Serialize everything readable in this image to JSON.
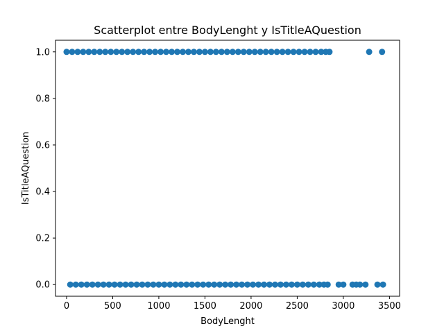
{
  "chart_data": {
    "type": "scatter",
    "title": "Scatterplot entre BodyLenght y IsTitleAQuestion",
    "xlabel": "BodyLenght",
    "ylabel": "IsTitleAQuestion",
    "xlim": [
      -120,
      3610
    ],
    "ylim": [
      -0.05,
      1.05
    ],
    "xticks": [
      0,
      500,
      1000,
      1500,
      2000,
      2500,
      3000,
      3500
    ],
    "xtick_labels": [
      "0",
      "500",
      "1000",
      "1500",
      "2000",
      "2500",
      "3000",
      "3500"
    ],
    "yticks": [
      0.0,
      0.2,
      0.4,
      0.6,
      0.8,
      1.0
    ],
    "ytick_labels": [
      "0.0",
      "0.2",
      "0.4",
      "0.6",
      "0.8",
      "1.0"
    ],
    "grid": false,
    "marker_color": "#1f77b4",
    "series": [
      {
        "name": "",
        "points": [
          [
            0,
            1
          ],
          [
            60,
            1
          ],
          [
            120,
            1
          ],
          [
            180,
            1
          ],
          [
            240,
            1
          ],
          [
            300,
            1
          ],
          [
            360,
            1
          ],
          [
            420,
            1
          ],
          [
            480,
            1
          ],
          [
            540,
            1
          ],
          [
            600,
            1
          ],
          [
            660,
            1
          ],
          [
            720,
            1
          ],
          [
            780,
            1
          ],
          [
            840,
            1
          ],
          [
            900,
            1
          ],
          [
            960,
            1
          ],
          [
            1020,
            1
          ],
          [
            1080,
            1
          ],
          [
            1140,
            1
          ],
          [
            1200,
            1
          ],
          [
            1260,
            1
          ],
          [
            1320,
            1
          ],
          [
            1380,
            1
          ],
          [
            1440,
            1
          ],
          [
            1500,
            1
          ],
          [
            1560,
            1
          ],
          [
            1620,
            1
          ],
          [
            1680,
            1
          ],
          [
            1740,
            1
          ],
          [
            1800,
            1
          ],
          [
            1860,
            1
          ],
          [
            1920,
            1
          ],
          [
            1980,
            1
          ],
          [
            2040,
            1
          ],
          [
            2100,
            1
          ],
          [
            2160,
            1
          ],
          [
            2220,
            1
          ],
          [
            2280,
            1
          ],
          [
            2340,
            1
          ],
          [
            2400,
            1
          ],
          [
            2460,
            1
          ],
          [
            2520,
            1
          ],
          [
            2580,
            1
          ],
          [
            2640,
            1
          ],
          [
            2700,
            1
          ],
          [
            2760,
            1
          ],
          [
            2810,
            1
          ],
          [
            2850,
            1
          ],
          [
            3280,
            1
          ],
          [
            3420,
            1
          ],
          [
            40,
            0
          ],
          [
            100,
            0
          ],
          [
            160,
            0
          ],
          [
            220,
            0
          ],
          [
            280,
            0
          ],
          [
            340,
            0
          ],
          [
            400,
            0
          ],
          [
            460,
            0
          ],
          [
            520,
            0
          ],
          [
            580,
            0
          ],
          [
            640,
            0
          ],
          [
            700,
            0
          ],
          [
            760,
            0
          ],
          [
            820,
            0
          ],
          [
            880,
            0
          ],
          [
            940,
            0
          ],
          [
            1000,
            0
          ],
          [
            1060,
            0
          ],
          [
            1120,
            0
          ],
          [
            1180,
            0
          ],
          [
            1240,
            0
          ],
          [
            1300,
            0
          ],
          [
            1360,
            0
          ],
          [
            1420,
            0
          ],
          [
            1480,
            0
          ],
          [
            1540,
            0
          ],
          [
            1600,
            0
          ],
          [
            1660,
            0
          ],
          [
            1720,
            0
          ],
          [
            1780,
            0
          ],
          [
            1840,
            0
          ],
          [
            1900,
            0
          ],
          [
            1960,
            0
          ],
          [
            2020,
            0
          ],
          [
            2080,
            0
          ],
          [
            2140,
            0
          ],
          [
            2200,
            0
          ],
          [
            2260,
            0
          ],
          [
            2320,
            0
          ],
          [
            2380,
            0
          ],
          [
            2440,
            0
          ],
          [
            2500,
            0
          ],
          [
            2560,
            0
          ],
          [
            2620,
            0
          ],
          [
            2680,
            0
          ],
          [
            2740,
            0
          ],
          [
            2790,
            0
          ],
          [
            2830,
            0
          ],
          [
            2950,
            0
          ],
          [
            3000,
            0
          ],
          [
            3100,
            0
          ],
          [
            3140,
            0
          ],
          [
            3180,
            0
          ],
          [
            3240,
            0
          ],
          [
            3370,
            0
          ],
          [
            3430,
            0
          ]
        ]
      }
    ]
  }
}
